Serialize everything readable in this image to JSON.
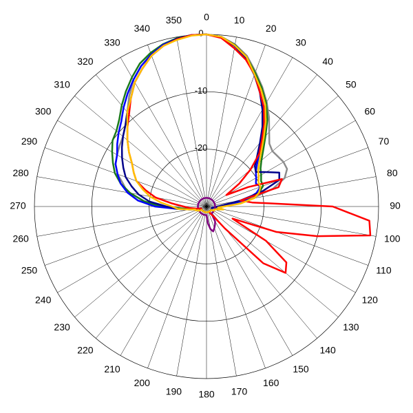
{
  "chart_data": {
    "type": "polar",
    "x": [
      0,
      5,
      10,
      15,
      20,
      25,
      30,
      35,
      40,
      45,
      50,
      55,
      60,
      65,
      70,
      75,
      80,
      85,
      90,
      95,
      100,
      105,
      110,
      115,
      120,
      125,
      130,
      135,
      140,
      145,
      150,
      155,
      160,
      165,
      170,
      175,
      180,
      185,
      190,
      195,
      200,
      205,
      210,
      215,
      220,
      225,
      230,
      235,
      240,
      245,
      250,
      255,
      260,
      265,
      270,
      275,
      280,
      285,
      290,
      295,
      300,
      305,
      310,
      315,
      320,
      325,
      330,
      335,
      340,
      345,
      350,
      355
    ],
    "thetaticks": [
      0,
      10,
      20,
      30,
      40,
      50,
      60,
      70,
      80,
      90,
      100,
      110,
      120,
      130,
      140,
      150,
      160,
      170,
      180,
      190,
      200,
      210,
      220,
      230,
      240,
      250,
      260,
      270,
      280,
      290,
      300,
      310,
      320,
      330,
      340,
      350
    ],
    "rlim": [
      -30,
      0
    ],
    "rticks": [
      -20,
      -10,
      0
    ],
    "series": [
      {
        "color": "#8c8c8c",
        "values": [
          0,
          -0.3,
          -1.3,
          -2.8,
          -5,
          -7,
          -9,
          -11,
          -13,
          -14.5,
          -15,
          -14.8,
          -14.5,
          -14.5,
          -15.5,
          -18,
          -22,
          -25,
          -27,
          -28,
          -28.5,
          -29,
          -29,
          -29,
          -29,
          -29,
          -29,
          -29,
          -29,
          -29,
          -29,
          -29,
          -29,
          -29,
          -29,
          -29,
          -29,
          -29,
          -29,
          -29,
          -29,
          -29,
          -29,
          -29,
          -29,
          -29,
          -29,
          -29,
          -29,
          -29,
          -28.5,
          -28,
          -27,
          -25,
          -22,
          -18,
          -16,
          -15,
          -13.5,
          -12.5,
          -12,
          -11.5,
          -11,
          -10,
          -8.5,
          -6.5,
          -4.5,
          -3,
          -1.8,
          -0.8,
          -0.3,
          0
        ]
      },
      {
        "color": "#1a7a1a",
        "values": [
          0,
          -0.3,
          -1.4,
          -3,
          -5.2,
          -7.2,
          -9.2,
          -11.5,
          -14,
          -16,
          -17.5,
          -18.5,
          -19,
          -19.5,
          -19.5,
          -20.5,
          -23,
          -26,
          -28,
          -28.5,
          -29,
          -29,
          -29,
          -29,
          -29,
          -29,
          -29,
          -29,
          -29,
          -29,
          -29,
          -29,
          -29,
          -29,
          -29,
          -29,
          -29,
          -29,
          -29,
          -29,
          -29,
          -29,
          -29,
          -29,
          -29,
          -29,
          -29,
          -29,
          -29,
          -29,
          -28.5,
          -28,
          -27.5,
          -26,
          -22,
          -19,
          -16.5,
          -14.5,
          -13,
          -12,
          -11,
          -10,
          -9.5,
          -8.5,
          -7,
          -5.5,
          -4,
          -2.5,
          -1.5,
          -0.7,
          -0.2,
          0
        ]
      },
      {
        "color": "#0000ff",
        "values": [
          0,
          -0.3,
          -1.5,
          -3.2,
          -5.5,
          -8,
          -10,
          -12.5,
          -15,
          -17,
          -18.5,
          -19.5,
          -20,
          -20.5,
          -20,
          -21,
          -23,
          -26,
          -28,
          -28.5,
          -29,
          -29,
          -29,
          -29,
          -29,
          -29,
          -29,
          -29,
          -29,
          -29,
          -29,
          -29,
          -29,
          -29,
          -29,
          -29,
          -29,
          -29,
          -29,
          -29,
          -29,
          -29,
          -29,
          -29,
          -29,
          -29,
          -29,
          -29,
          -29,
          -29,
          -28.5,
          -28,
          -27,
          -25,
          -21,
          -18,
          -16,
          -14.5,
          -13.5,
          -12.5,
          -12,
          -11,
          -10,
          -9,
          -7.5,
          -6,
          -4.5,
          -3,
          -1.8,
          -0.8,
          -0.3,
          0
        ]
      },
      {
        "color": "#00008b",
        "values": [
          0,
          -0.4,
          -1.6,
          -3.3,
          -5.6,
          -8,
          -10.5,
          -13,
          -15.5,
          -17.5,
          -19,
          -19.5,
          -18,
          -16,
          -16.5,
          -20,
          -24,
          -27,
          -28,
          -28.5,
          -29,
          -29,
          -29,
          -29,
          -29,
          -29,
          -29,
          -29,
          -29,
          -29,
          -29,
          -29,
          -29,
          -29,
          -29,
          -29,
          -29,
          -29,
          -29,
          -29,
          -29,
          -29,
          -29,
          -29,
          -29,
          -29,
          -29,
          -29,
          -29,
          -29,
          -28.5,
          -28,
          -27,
          -25,
          -23,
          -20,
          -18,
          -16.5,
          -15,
          -14,
          -13,
          -12,
          -11,
          -10,
          -8.5,
          -7,
          -5,
          -3.5,
          -2,
          -1,
          -0.3,
          0
        ]
      },
      {
        "color": "#800080",
        "values": [
          -28.5,
          -28.5,
          -28.5,
          -28.5,
          -28.5,
          -28.5,
          -28.5,
          -28.5,
          -28.5,
          -28.5,
          -28.5,
          -28.5,
          -28.5,
          -28.5,
          -28.5,
          -28.5,
          -28.5,
          -28.5,
          -28.5,
          -28.5,
          -28.5,
          -28.5,
          -28.5,
          -28.5,
          -28.5,
          -28.5,
          -28.5,
          -28.5,
          -28.5,
          -28.5,
          -27,
          -26.5,
          -26,
          -25.5,
          -26,
          -27,
          -28.5,
          -28.5,
          -28.5,
          -28.5,
          -28.5,
          -28.5,
          -28.5,
          -28.5,
          -28.5,
          -28.5,
          -28.5,
          -28.5,
          -28.5,
          -28.5,
          -28.5,
          -28.5,
          -28.5,
          -28.5,
          -28.5,
          -28.5,
          -28.5,
          -28.5,
          -28.5,
          -28.5,
          -28.5,
          -28.5,
          -28.5,
          -28.5,
          -28.5,
          -28.5,
          -28.5,
          -28.5,
          -28.5,
          -28.5,
          -28.5,
          -28.5
        ]
      },
      {
        "color": "#ff0000",
        "values": [
          0,
          -0.5,
          -2,
          -3.5,
          -5.5,
          -8,
          -10,
          -12.5,
          -15,
          -17,
          -20,
          -23,
          -26,
          -22,
          -16,
          -17,
          -24,
          -22,
          -8,
          -1.5,
          -1,
          -10,
          -17,
          -25,
          -18,
          -13,
          -12,
          -16,
          -25,
          -28,
          -28.5,
          -29,
          -29,
          -29,
          -29,
          -29,
          -29,
          -29,
          -29,
          -29,
          -29,
          -29,
          -29,
          -29,
          -29,
          -29,
          -29,
          -29,
          -29,
          -29,
          -29,
          -28.5,
          -28,
          -27,
          -26,
          -24,
          -21,
          -19,
          -17,
          -16,
          -15,
          -13.5,
          -12,
          -10.5,
          -9,
          -7,
          -5,
          -3.5,
          -2,
          -1,
          -0.4,
          0
        ]
      },
      {
        "color": "#ffc000",
        "values": [
          0,
          -0.3,
          -1.5,
          -3,
          -5.5,
          -7.5,
          -9.5,
          -12,
          -14.5,
          -16.5,
          -18,
          -19,
          -19.5,
          -20,
          -20,
          -20.5,
          -21.5,
          -24,
          -27,
          -28,
          -27,
          -28,
          -28.5,
          -28.5,
          -28.5,
          -29,
          -29,
          -29,
          -29,
          -29,
          -29,
          -29,
          -29,
          -29,
          -29,
          -29,
          -29,
          -29,
          -29,
          -29,
          -29,
          -29,
          -29,
          -29,
          -29,
          -29,
          -29,
          -29,
          -28.5,
          -28.5,
          -28,
          -28,
          -27,
          -25,
          -24,
          -22,
          -20,
          -18.5,
          -17,
          -16,
          -15,
          -13.5,
          -12,
          -10.5,
          -8.5,
          -7,
          -5,
          -3.5,
          -2,
          -1,
          -0.5,
          -0.1
        ]
      }
    ]
  }
}
